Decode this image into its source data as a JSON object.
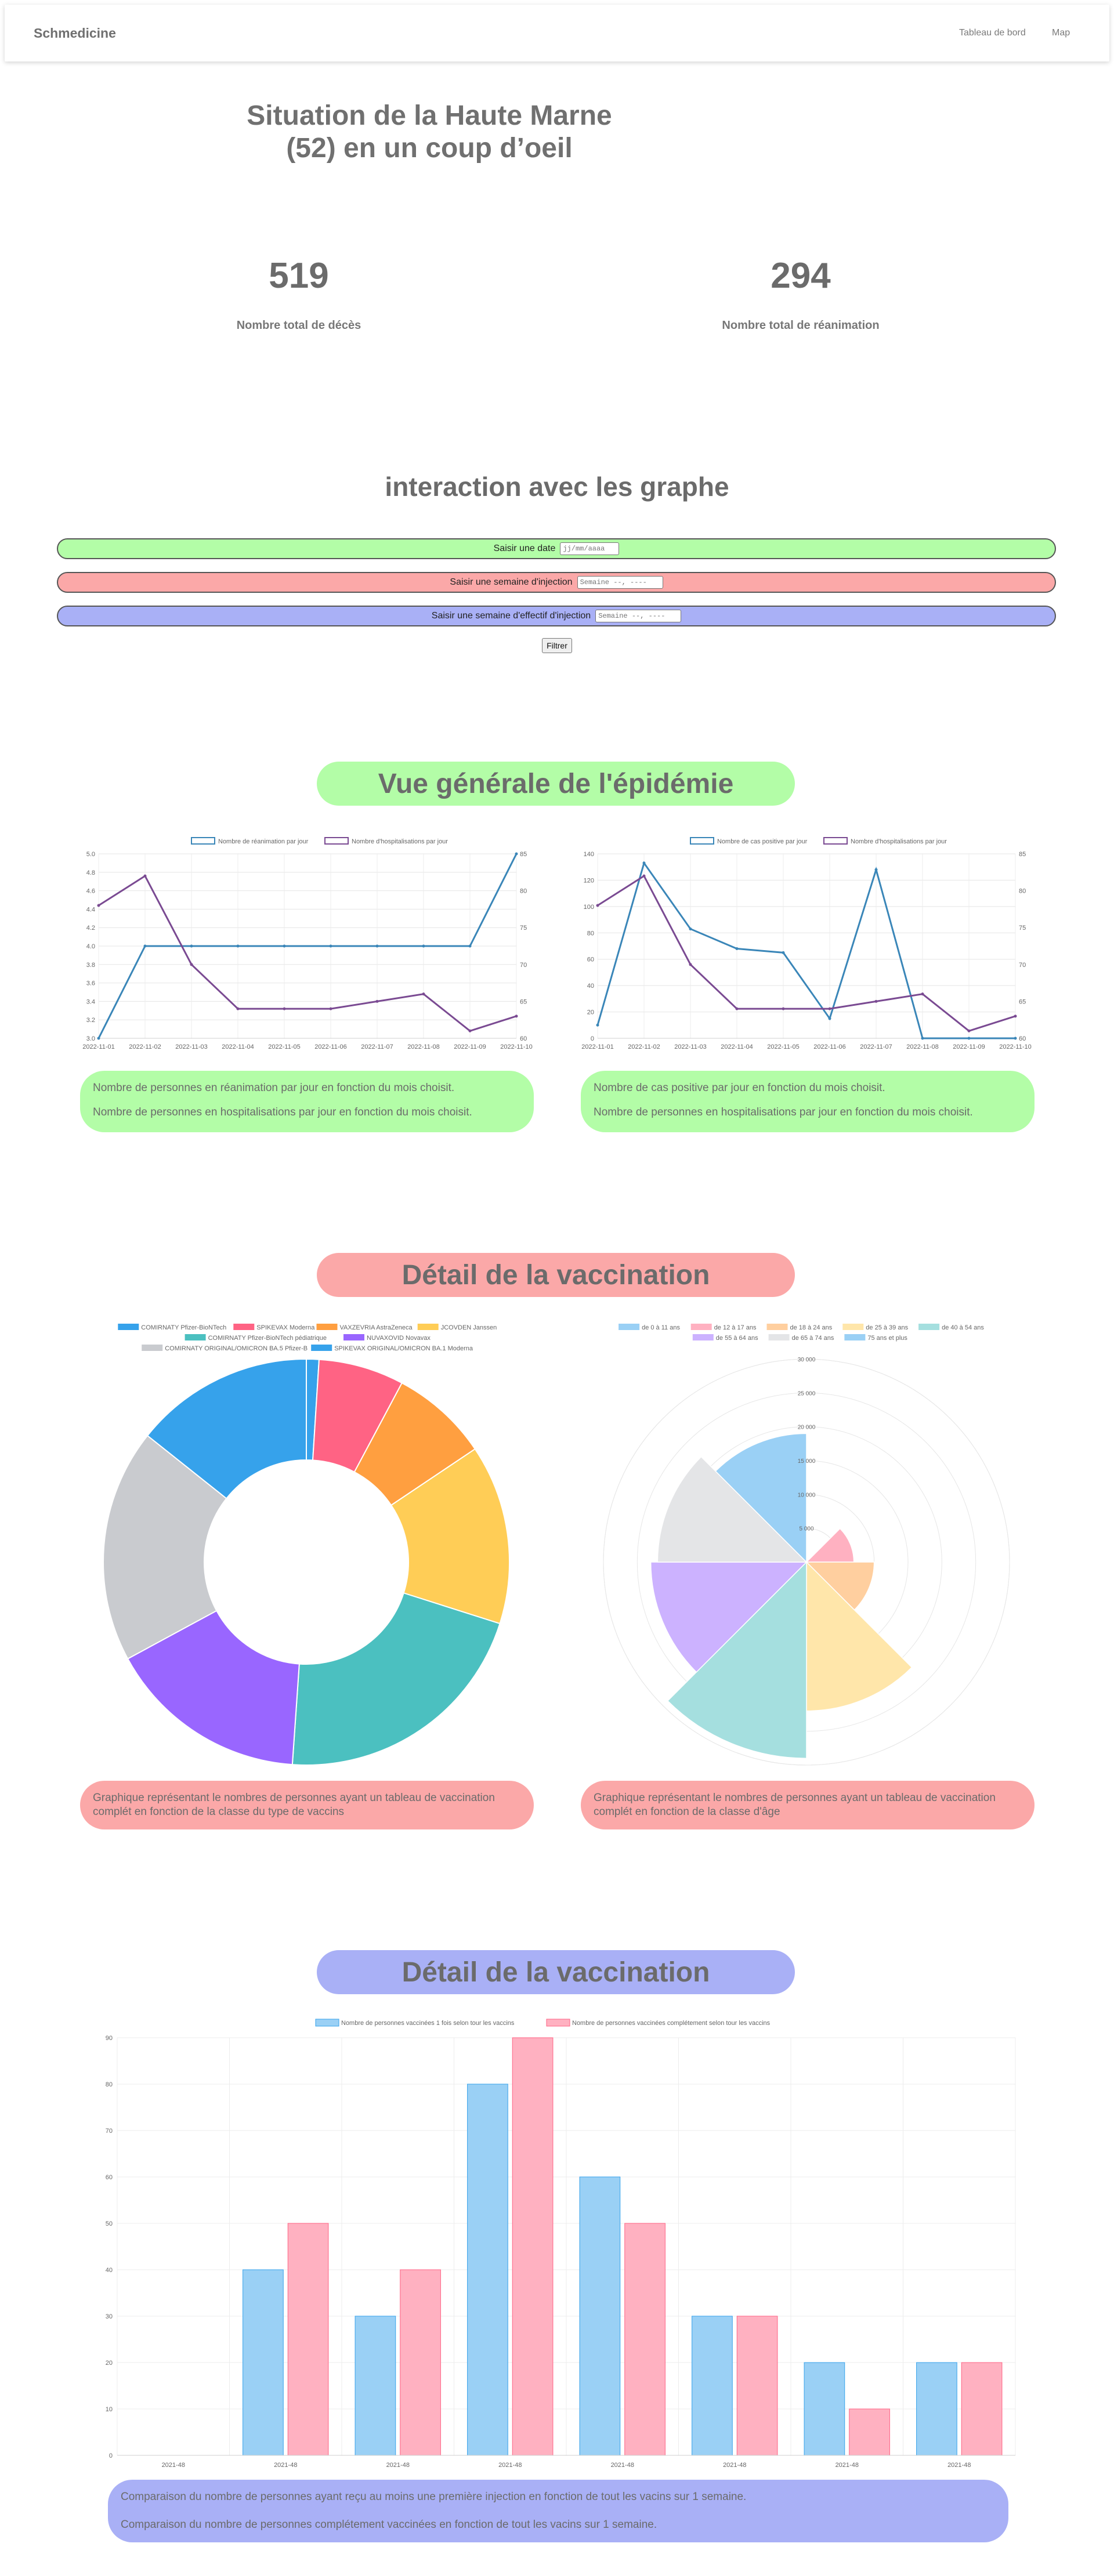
{
  "navbar": {
    "brand": "Schmedicine",
    "links": [
      "Tableau de bord",
      "Map"
    ]
  },
  "header": {
    "title": "Situation de la Haute Marne (52) en un coup d’oeil"
  },
  "kpis": [
    {
      "value": "519",
      "label": "Nombre total de décès"
    },
    {
      "value": "294",
      "label": "Nombre total de réanimation"
    }
  ],
  "filters": {
    "title": "interaction avec les graphe",
    "date_label": "Saisir une date",
    "date_placeholder": "jj/mm/aaaa",
    "week_injection_label": "Saisir une semaine d'injection",
    "week_injection_placeholder": "Semaine --, ----",
    "week_effect_label": "Saisir une semaine d'effectif d'injection",
    "week_effect_placeholder": "Semaine --, ----",
    "submit_label": "Filtrer"
  },
  "sections": {
    "epidemic_title": "Vue générale de l'épidémie",
    "vaccination_title": "Détail de la vaccination",
    "vaccination_weekly_title": "Détail de la vaccination"
  },
  "captions": {
    "rea_hosp": [
      "Nombre de personnes en réanimation par jour en fonction du mois choisit.",
      "Nombre de personnes en hospitalisations par jour en fonction du mois choisit."
    ],
    "cases_hosp": [
      "Nombre de cas positive par jour en fonction du mois choisit.",
      "Nombre de personnes en hospitalisations par jour en fonction du mois choisit."
    ],
    "vaccine_type": "Graphique représentant le nombres de personnes ayant un tableau de vaccination complét en fonction de la classe du type de vaccins",
    "vaccine_age": "Graphique représentant le nombres de personnes ayant un tableau de vaccination complét en fonction de la classe d'âge",
    "weekly": [
      "Comparaison du nombre de personnes ayant reçu au moins une première injection en fonction de tout les vacins sur 1 semaine.",
      "Comparaison du nombre de personnes complétement vaccinées en fonction de tout les vacins sur 1 semaine."
    ]
  },
  "colors": {
    "green": "#b3fda7",
    "red": "#fba8a8",
    "blue": "#a9b0f6",
    "line_blue": "#3a86b8",
    "line_purple": "#7a4a92"
  },
  "chart_data": [
    {
      "id": "rea_hosp",
      "type": "line",
      "x": [
        "2022-11-01",
        "2022-11-02",
        "2022-11-03",
        "2022-11-04",
        "2022-11-05",
        "2022-11-06",
        "2022-11-07",
        "2022-11-08",
        "2022-11-09",
        "2022-11-10"
      ],
      "series": [
        {
          "name": "Nombre de réanimation par jour",
          "axis": "left",
          "color": "#3a86b8",
          "values": [
            3.0,
            4.0,
            4.0,
            4.0,
            4.0,
            4.0,
            4.0,
            4.0,
            4.0,
            5.0
          ]
        },
        {
          "name": "Nombre d'hospitalisations par jour",
          "axis": "right",
          "color": "#7a4a92",
          "values": [
            78,
            82,
            70,
            64,
            64,
            64,
            65,
            66,
            61,
            63
          ]
        }
      ],
      "yticks_left": [
        "3.0",
        "3.2",
        "3.4",
        "3.6",
        "3.8",
        "4.0",
        "4.2",
        "4.4",
        "4.6",
        "4.8",
        "5.0"
      ],
      "yticks_right": [
        "60",
        "65",
        "70",
        "75",
        "80",
        "85"
      ],
      "ylim_left": [
        3.0,
        5.0
      ],
      "ylim_right": [
        60,
        85
      ],
      "legend": "top",
      "grid": true
    },
    {
      "id": "cases_hosp",
      "type": "line",
      "x": [
        "2022-11-01",
        "2022-11-02",
        "2022-11-03",
        "2022-11-04",
        "2022-11-05",
        "2022-11-06",
        "2022-11-07",
        "2022-11-08",
        "2022-11-09",
        "2022-11-10"
      ],
      "series": [
        {
          "name": "Nombre de cas positive par jour",
          "axis": "left",
          "color": "#3a86b8",
          "values": [
            10,
            133,
            83,
            68,
            65,
            15,
            128,
            0,
            0,
            0
          ]
        },
        {
          "name": "Nombre d'hospitalisations par jour",
          "axis": "right",
          "color": "#7a4a92",
          "values": [
            78,
            82,
            70,
            64,
            64,
            64,
            65,
            66,
            61,
            63
          ]
        }
      ],
      "yticks_left": [
        "0",
        "20",
        "40",
        "60",
        "80",
        "100",
        "120",
        "140"
      ],
      "yticks_right": [
        "60",
        "65",
        "70",
        "75",
        "80",
        "85"
      ],
      "ylim_left": [
        0,
        140
      ],
      "ylim_right": [
        60,
        85
      ],
      "legend": "top",
      "grid": true
    },
    {
      "id": "vaccine_type",
      "type": "pie",
      "donut": true,
      "labels": [
        "COMIRNATY Pfizer-BioNTech",
        "SPIKEVAX Moderna",
        "VAXZEVRIA AstraZeneca",
        "JCOVDEN Janssen",
        "COMIRNATY Pfizer-BioNTech pédiatrique",
        "NUVAXOVID Novavax",
        "COMIRNATY ORIGINAL/OMICRON BA.5 Pfizer-B",
        "SPIKEVAX ORIGINAL/OMICRON BA.1 Moderna"
      ],
      "colors": [
        "#36a2eb",
        "#ff6384",
        "#ff9f40",
        "#ffcd56",
        "#4bc0c0",
        "#9966ff",
        "#c9cbcf",
        "#36a2eb"
      ],
      "values": [
        14.3,
        6.8,
        7.8,
        14.3,
        21.2,
        16.0,
        18.6,
        1.0
      ],
      "legend": "top"
    },
    {
      "id": "vaccine_age",
      "type": "polar-area",
      "labels": [
        "de 0 à 11 ans",
        "de 12 à 17 ans",
        "de 18 à 24 ans",
        "de 25 à 39 ans",
        "de 40 à 54 ans",
        "de 55 à 64 ans",
        "de 65 à 74 ans",
        "75 ans et plus"
      ],
      "colors": [
        "#9ad0f5",
        "#ffb1c1",
        "#ffcf9f",
        "#ffe6aa",
        "#a5dfdf",
        "#ccb2ff",
        "#e4e5e7",
        "#9ad0f5"
      ],
      "values": [
        0,
        7000,
        10000,
        22000,
        29000,
        23000,
        22000,
        19000
      ],
      "ticks": [
        "5 000",
        "10 000",
        "15 000",
        "20 000",
        "25 000",
        "30 000"
      ],
      "rmax": 30000,
      "legend": "top"
    },
    {
      "id": "weekly",
      "type": "bar",
      "categories": [
        "2021-48",
        "2021-48",
        "2021-48",
        "2021-48",
        "2021-48",
        "2021-48",
        "2021-48",
        "2021-48"
      ],
      "series": [
        {
          "name": "Nombre de personnes vaccinées 1 fois selon tour les vaccins",
          "color": "#9ad0f5",
          "border": "#36a2eb",
          "values": [
            0,
            40,
            30,
            80,
            60,
            30,
            20,
            20
          ]
        },
        {
          "name": "Nombre de personnes vaccinées complétement selon tour les vaccins",
          "color": "#ffb1c1",
          "border": "#ff6384",
          "values": [
            0,
            50,
            40,
            90,
            50,
            30,
            10,
            20
          ]
        }
      ],
      "yticks": [
        "0",
        "10",
        "20",
        "30",
        "40",
        "50",
        "60",
        "70",
        "80",
        "90"
      ],
      "ylim": [
        0,
        90
      ],
      "legend": "top",
      "grid": true
    }
  ]
}
